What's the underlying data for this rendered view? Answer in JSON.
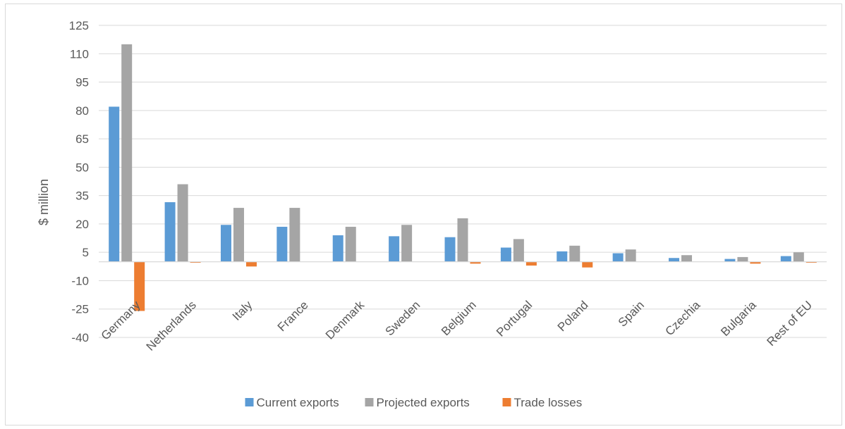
{
  "chart_data": {
    "type": "bar",
    "title": "",
    "xlabel": "",
    "ylabel": "$ million",
    "ylim": [
      -40,
      125
    ],
    "y_ticks": [
      125,
      110,
      95,
      80,
      65,
      50,
      35,
      20,
      5,
      -10,
      -25,
      -40
    ],
    "grid": true,
    "legend_position": "bottom",
    "categories": [
      "Germany",
      "Netherlands",
      "Italy",
      "France",
      "Denmark",
      "Sweden",
      "Belgium",
      "Portugal",
      "Poland",
      "Spain",
      "Czechia",
      "Bulgaria",
      "Rest of EU"
    ],
    "series": [
      {
        "name": "Current exports",
        "color": "#5b9bd5",
        "values": [
          82,
          31.5,
          19.5,
          18.5,
          14,
          13.5,
          13,
          7.5,
          5.5,
          4.5,
          2,
          1.5,
          3
        ]
      },
      {
        "name": "Projected exports",
        "color": "#a5a5a5",
        "values": [
          115,
          41,
          28.5,
          28.5,
          18.5,
          19.5,
          23,
          12,
          8.5,
          6.5,
          3.5,
          2.5,
          5
        ]
      },
      {
        "name": "Trade losses",
        "color": "#ed7d31",
        "values": [
          -26,
          -0.5,
          -2.5,
          0,
          0,
          0,
          -1,
          -2,
          -3,
          0,
          0,
          -1,
          -0.5
        ]
      }
    ]
  }
}
